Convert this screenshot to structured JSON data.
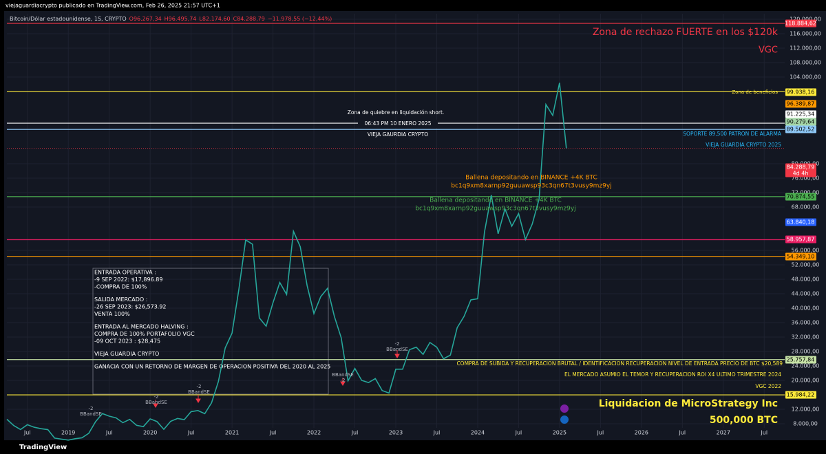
{
  "chart_data": {
    "type": "line",
    "publisher_line": "viejaguardiacrypto publicado en TradingView.com, Feb 26, 2025 21:57 UTC+1",
    "symbol": "Bitcoin/Dólar estadounidense, 1S, CRYPTO",
    "ohlc": [
      "O96.267,34",
      "H96.495,74",
      "L82.174,60",
      "C84.288,79",
      "−11.978,55 (−12,44%)"
    ],
    "brand": "TradingView",
    "color": "#26a69a",
    "grid": true,
    "x": [
      "2018-04",
      "2018-05",
      "2018-06",
      "2018-07",
      "2018-08",
      "2018-09",
      "2018-10",
      "2018-11",
      "2018-12",
      "2019-01",
      "2019-02",
      "2019-03",
      "2019-04",
      "2019-05",
      "2019-06",
      "2019-07",
      "2019-08",
      "2019-09",
      "2019-10",
      "2019-11",
      "2019-12",
      "2020-01",
      "2020-02",
      "2020-03",
      "2020-04",
      "2020-05",
      "2020-06",
      "2020-07",
      "2020-08",
      "2020-09",
      "2020-10",
      "2020-11",
      "2020-12",
      "2021-01",
      "2021-02",
      "2021-03",
      "2021-04",
      "2021-05",
      "2021-06",
      "2021-07",
      "2021-08",
      "2021-09",
      "2021-10",
      "2021-11",
      "2021-12",
      "2022-01",
      "2022-02",
      "2022-03",
      "2022-04",
      "2022-05",
      "2022-06",
      "2022-07",
      "2022-08",
      "2022-09",
      "2022-10",
      "2022-11",
      "2022-12",
      "2023-01",
      "2023-02",
      "2023-03",
      "2023-04",
      "2023-05",
      "2023-06",
      "2023-07",
      "2023-08",
      "2023-09",
      "2023-10",
      "2023-11",
      "2023-12",
      "2024-01",
      "2024-02",
      "2024-03",
      "2024-04",
      "2024-05",
      "2024-06",
      "2024-07",
      "2024-08",
      "2024-09",
      "2024-10",
      "2024-11",
      "2024-12",
      "2025-01",
      "2025-02"
    ],
    "values": [
      9240,
      7500,
      6400,
      7730,
      7030,
      6630,
      6370,
      4020,
      3740,
      3460,
      3850,
      4100,
      5350,
      8570,
      10820,
      10090,
      9630,
      8290,
      9200,
      7570,
      7200,
      9350,
      8600,
      6440,
      8660,
      9460,
      9140,
      11350,
      11650,
      10780,
      13800,
      19700,
      29000,
      33100,
      45200,
      58900,
      57700,
      37300,
      35000,
      41500,
      47100,
      43800,
      61300,
      57000,
      46300,
      38500,
      43200,
      45500,
      37700,
      31800,
      19900,
      23300,
      20000,
      19400,
      20500,
      17200,
      16500,
      23100,
      23100,
      28500,
      29200,
      27200,
      30500,
      29200,
      26000,
      27000,
      34600,
      37700,
      42300,
      42600,
      61100,
      71300,
      60600,
      67500,
      62700,
      66200,
      59000,
      63300,
      70200,
      96400,
      93400,
      102400,
      84289
    ],
    "xlim": [
      "2018-04",
      "2027-10"
    ],
    "xticks": [
      {
        "value": "2018-07",
        "label": "Jul"
      },
      {
        "value": "2019-01",
        "label": "2019"
      },
      {
        "value": "2019-07",
        "label": "Jul"
      },
      {
        "value": "2020-01",
        "label": "2020"
      },
      {
        "value": "2020-07",
        "label": "Jul"
      },
      {
        "value": "2021-01",
        "label": "2021"
      },
      {
        "value": "2021-07",
        "label": "Jul"
      },
      {
        "value": "2022-01",
        "label": "2022"
      },
      {
        "value": "2022-07",
        "label": "Jul"
      },
      {
        "value": "2023-01",
        "label": "2023"
      },
      {
        "value": "2023-07",
        "label": "Jul"
      },
      {
        "value": "2024-01",
        "label": "2024"
      },
      {
        "value": "2024-07",
        "label": "Jul"
      },
      {
        "value": "2025-01",
        "label": "2025"
      },
      {
        "value": "2025-07",
        "label": "Jul"
      },
      {
        "value": "2026-01",
        "label": "2026"
      },
      {
        "value": "2026-07",
        "label": "Jul"
      },
      {
        "value": "2027-01",
        "label": "2027"
      },
      {
        "value": "2027-07",
        "label": "Jul"
      }
    ],
    "ylim": [
      6857,
      121524
    ],
    "yticks": [
      {
        "value": 8000,
        "label": "8.000,00"
      },
      {
        "value": 12000,
        "label": "12.000,00"
      },
      {
        "value": 20000,
        "label": "20.000,00"
      },
      {
        "value": 24000,
        "label": "24.000,00"
      },
      {
        "value": 28000,
        "label": "28.000,00"
      },
      {
        "value": 32000,
        "label": "32.000,00"
      },
      {
        "value": 36000,
        "label": "36.000,00"
      },
      {
        "value": 40000,
        "label": "40.000,00"
      },
      {
        "value": 44000,
        "label": "44.000,00"
      },
      {
        "value": 48000,
        "label": "48.000,00"
      },
      {
        "value": 52000,
        "label": "52.000,00"
      },
      {
        "value": 56000,
        "label": "56.000,00"
      },
      {
        "value": 68000,
        "label": "68.000,00"
      },
      {
        "value": 72000,
        "label": "72.000,00"
      },
      {
        "value": 76000,
        "label": "76.000,00"
      },
      {
        "value": 80000,
        "label": "80.000,00"
      },
      {
        "value": 104000,
        "label": "104.000,00"
      },
      {
        "value": 108000,
        "label": "108.000,00"
      },
      {
        "value": 112000,
        "label": "112.000,00"
      },
      {
        "value": 116000,
        "label": "116.000,00"
      },
      {
        "value": 120000,
        "label": "120.000,00"
      }
    ],
    "levels": [
      {
        "value": 118884.62,
        "label": "118.884,62",
        "color": "#f23645",
        "text_color": "#ffffff",
        "line": "solid"
      },
      {
        "value": 99938.16,
        "label": "99.938,16",
        "color": "#ffeb3b",
        "text_color": "#000000",
        "line": "solid"
      },
      {
        "value": 96389.87,
        "label": "96.389,87",
        "color": "#ff9800",
        "text_color": "#000000",
        "line": "none"
      },
      {
        "value": 91225.34,
        "label": "91.225,34",
        "color": "#ffffff",
        "text_color": "#000000",
        "line": "solid"
      },
      {
        "value": 90279.64,
        "label": "90.279,64",
        "color": "#a5d6a7",
        "text_color": "#000000",
        "line": "none"
      },
      {
        "value": 89502.52,
        "label": "89.502,52",
        "color": "#90caf9",
        "text_color": "#000000",
        "line": "solid"
      },
      {
        "value": 84288.79,
        "label": "84.288,79",
        "sublabel": "4d 4h",
        "color": "#f23645",
        "text_color": "#ffffff",
        "line": "dotted"
      },
      {
        "value": 70874.55,
        "label": "70.874,55",
        "color": "#4caf50",
        "text_color": "#000000",
        "line": "solid"
      },
      {
        "value": 63840.18,
        "label": "63.840,18",
        "color": "#2962ff",
        "text_color": "#ffffff",
        "line": "none"
      },
      {
        "value": 58957.87,
        "label": "58.957,87",
        "color": "#e91e63",
        "text_color": "#ffffff",
        "line": "solid"
      },
      {
        "value": 54349.1,
        "label": "54.349,10",
        "color": "#ff9800",
        "text_color": "#000000",
        "line": "solid"
      },
      {
        "value": 25757.84,
        "label": "25.757,84",
        "color": "#c5e1a5",
        "text_color": "#000000",
        "line": "solid"
      },
      {
        "value": 15984.22,
        "label": "15.984,22",
        "color": "#ffeb3b",
        "text_color": "#000000",
        "line": "solid"
      }
    ],
    "annotations": [
      {
        "text": "Zona de rechazo FUERTE en los $120k",
        "color": "#f23645"
      },
      {
        "text": "VGC",
        "color": "#f23645"
      },
      {
        "text": "Zona de beneficios",
        "color": "#ffeb3b"
      },
      {
        "text": "Zona de quiebre en liquidación short.",
        "color": "#ffffff"
      },
      {
        "text": "06:43 PM 10 ENERO 2025",
        "color": "#ffffff"
      },
      {
        "text": "VIEJA GAURDIA CRYPTO",
        "color": "#ffffff"
      },
      {
        "text": "SOPORTE 89,500 PATRON DE ALARMA",
        "color": "#29b6f6"
      },
      {
        "text": "VIEJA GUARDIA CRYPTO 2025",
        "color": "#29b6f6"
      },
      {
        "text": "Ballena depositando en BINANCE +4K BTC",
        "color": "#ff9800"
      },
      {
        "text": "bc1q9xm8xarnp92guuawsp93c3qn67t3vusy9mz9yj",
        "color": "#ff9800"
      },
      {
        "text": "Ballena depositando en BINANCE +4K BTC",
        "color": "#4caf50"
      },
      {
        "text": "bc1q9xm8xarnp92guuawsp93c3qn67t3vusy9mz9yj",
        "color": "#4caf50"
      },
      {
        "text": "COMPRA DE SUBIDA Y RECUPERACION BRUTAL / IDENTIFICACION RECUPERACION NIVEL DE ENTRADA PRECIO DE BTC $20,589",
        "color": "#ffeb3b"
      },
      {
        "text": "EL MERCADO ASUMIO EL TEMOR Y RECUPERACION ROI X4 ULTIMO TRIMESTRE 2024",
        "color": "#ffeb3b"
      },
      {
        "text": "VGC 2022",
        "color": "#ffeb3b"
      },
      {
        "text": "Liquidacion de MicroStrategy Inc",
        "color": "#ffeb3b"
      },
      {
        "text": "500,000 BTC",
        "color": "#ffeb3b"
      }
    ],
    "text_box": [
      [
        "ENTRADA OPERATIVA :",
        "-9 SEP 2022: $17,896.89",
        "-COMPRA DE 100%"
      ],
      [
        "SALIDA MERCADO :",
        "-26 SEP 2023: $26,573.92",
        "VENTA 100%"
      ],
      [
        "ENTRADA AL MERCADO HALVING :",
        "COMPRA DE 100%  PORTAFOLIO VGC",
        "-09 OCT 2023 : $28,475"
      ],
      [
        "VIEJA GUARDIA CRYPTO"
      ],
      [
        "GANACIA CON UN RETORNO DE MARGEN DE OPERACION POSITIVA  DEL 2020 AL 2025"
      ]
    ],
    "signals": [
      {
        "lines": [
          "-2",
          "BBandSE"
        ]
      },
      {
        "lines": [
          "-2",
          "BBandSE"
        ]
      },
      {
        "lines": [
          "-2",
          "BBandSE"
        ]
      },
      {
        "lines": [
          "-2",
          "BBandSE"
        ]
      },
      {
        "lines": [
          "BBandSE",
          "-2"
        ]
      }
    ]
  }
}
